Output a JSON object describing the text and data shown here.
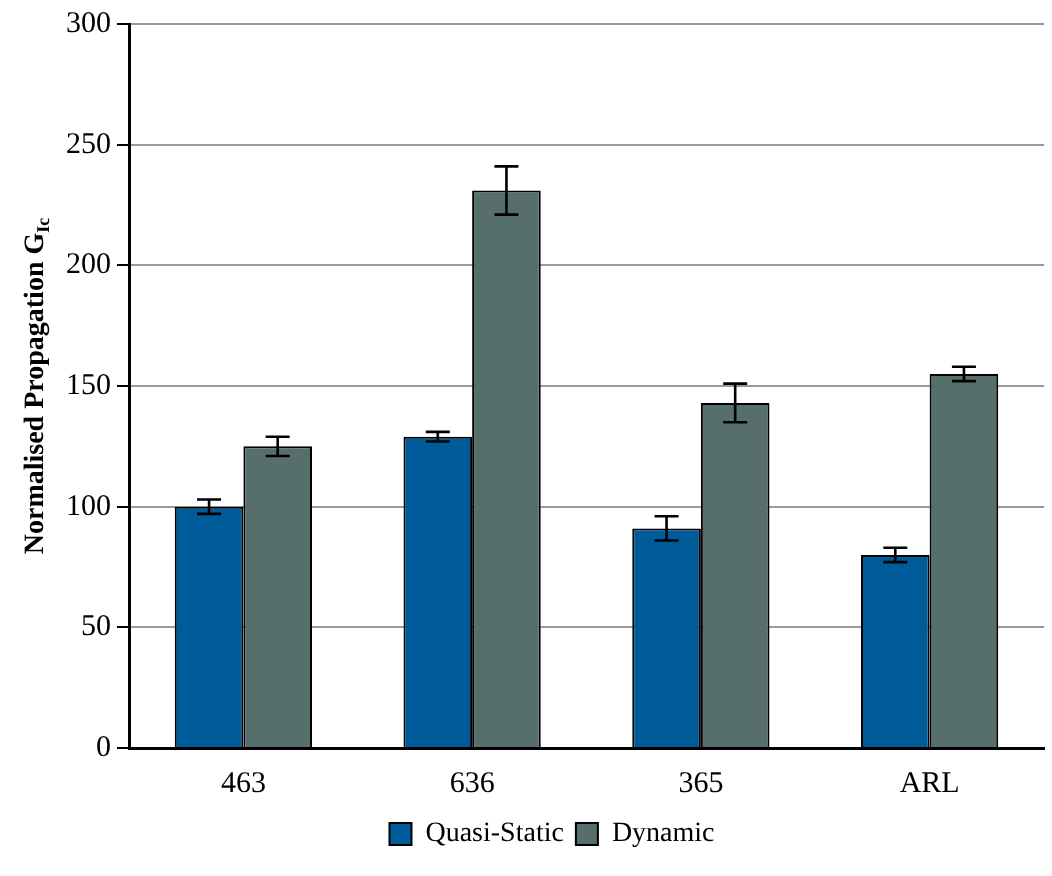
{
  "chart_data": {
    "type": "bar",
    "ylabel": "Normalised Propagation G$_{Ic}$",
    "categories": [
      "463",
      "636",
      "365",
      "ARL"
    ],
    "series": [
      {
        "name": "Quasi-Static",
        "color": "#005b9a",
        "values": [
          100,
          129,
          91,
          80
        ],
        "errors": [
          3,
          2,
          5,
          3
        ]
      },
      {
        "name": "Dynamic",
        "color": "#566e6c",
        "values": [
          125,
          231,
          143,
          155
        ],
        "errors": [
          4,
          10,
          8,
          3
        ]
      }
    ],
    "ylim": [
      0,
      300
    ],
    "yticks": [
      0,
      50,
      100,
      150,
      200,
      250,
      300
    ],
    "grid": "y",
    "legend": "bottom"
  }
}
